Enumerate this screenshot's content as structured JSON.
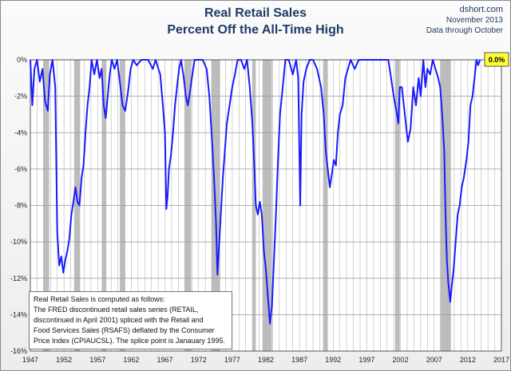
{
  "header": {
    "title_line1": "Real Retail Sales",
    "title_line2": "Percent Off the All-Time High",
    "source": "dshort.com",
    "date": "November 2013",
    "data_through": "Data through October"
  },
  "note": {
    "lines": [
      "Real Retail Sales is computed as follows:",
      "The FRED discontinued retail sales series (RETAIL,",
      "discontinued in April 2001) spliced with the Retail and",
      "Food Services Sales (RSAFS) deflated by the Consumer",
      "Price Index (CPIAUCSL). The splice point is Janauary 1995."
    ]
  },
  "chart_data": {
    "type": "line",
    "title": "Real Retail Sales Percent Off the All-Time High",
    "xlabel": "",
    "ylabel": "",
    "xlim": [
      1947,
      2017
    ],
    "ylim": [
      -16,
      0
    ],
    "x_ticks": [
      "1947",
      "1952",
      "1957",
      "1962",
      "1967",
      "1972",
      "1977",
      "1982",
      "1987",
      "1992",
      "1997",
      "2002",
      "2007",
      "2012",
      "2017"
    ],
    "y_ticks": [
      "0%",
      "-2%",
      "-4%",
      "-6%",
      "-8%",
      "-10%",
      "-12%",
      "-14%",
      "-16%"
    ],
    "y_tick_values": [
      0,
      -2,
      -4,
      -6,
      -8,
      -10,
      -12,
      -14,
      -16
    ],
    "grid": true,
    "line_color": "#1a1aff",
    "recession_color": "#bdbdbd",
    "recessions": [
      [
        1948.9,
        1949.8
      ],
      [
        1953.5,
        1954.4
      ],
      [
        1957.6,
        1958.3
      ],
      [
        1960.3,
        1961.1
      ],
      [
        1969.9,
        1970.9
      ],
      [
        1973.9,
        1975.2
      ],
      [
        1980.0,
        1980.5
      ],
      [
        1981.5,
        1982.9
      ],
      [
        1990.5,
        1991.2
      ],
      [
        2001.2,
        2001.9
      ],
      [
        2007.9,
        2009.5
      ]
    ],
    "latest_value": "0.0%",
    "series": [
      {
        "points": [
          [
            1947.0,
            0
          ],
          [
            1947.3,
            -2.5
          ],
          [
            1947.6,
            -0.5
          ],
          [
            1948.0,
            0
          ],
          [
            1948.4,
            -1.2
          ],
          [
            1948.8,
            -0.5
          ],
          [
            1949.2,
            -2.3
          ],
          [
            1949.6,
            -2.8
          ],
          [
            1949.9,
            -0.8
          ],
          [
            1950.3,
            0
          ],
          [
            1950.7,
            -1.5
          ],
          [
            1951.0,
            -9.5
          ],
          [
            1951.3,
            -11.3
          ],
          [
            1951.6,
            -10.8
          ],
          [
            1951.9,
            -11.7
          ],
          [
            1952.2,
            -11.0
          ],
          [
            1952.5,
            -10.5
          ],
          [
            1952.8,
            -9.8
          ],
          [
            1953.1,
            -8.5
          ],
          [
            1953.4,
            -7.8
          ],
          [
            1953.7,
            -7.0
          ],
          [
            1954.0,
            -7.8
          ],
          [
            1954.3,
            -8.0
          ],
          [
            1954.6,
            -6.5
          ],
          [
            1954.9,
            -5.8
          ],
          [
            1955.2,
            -4.0
          ],
          [
            1955.5,
            -2.5
          ],
          [
            1955.8,
            -1.5
          ],
          [
            1956.1,
            0
          ],
          [
            1956.5,
            -0.8
          ],
          [
            1956.9,
            0
          ],
          [
            1957.3,
            -1.0
          ],
          [
            1957.6,
            -0.5
          ],
          [
            1957.9,
            -2.5
          ],
          [
            1958.2,
            -3.2
          ],
          [
            1958.5,
            -2.0
          ],
          [
            1958.8,
            -0.8
          ],
          [
            1959.1,
            0
          ],
          [
            1959.5,
            -0.5
          ],
          [
            1959.9,
            0
          ],
          [
            1960.3,
            -1.2
          ],
          [
            1960.7,
            -2.5
          ],
          [
            1961.1,
            -2.8
          ],
          [
            1961.5,
            -1.8
          ],
          [
            1961.9,
            -0.5
          ],
          [
            1962.3,
            0
          ],
          [
            1962.8,
            -0.3
          ],
          [
            1963.5,
            0
          ],
          [
            1964.5,
            0
          ],
          [
            1965.2,
            -0.5
          ],
          [
            1965.6,
            0
          ],
          [
            1966.3,
            -0.8
          ],
          [
            1966.7,
            -2.5
          ],
          [
            1967.0,
            -4.0
          ],
          [
            1967.2,
            -8.2
          ],
          [
            1967.4,
            -7.5
          ],
          [
            1967.6,
            -6.0
          ],
          [
            1967.9,
            -5.2
          ],
          [
            1968.2,
            -4.0
          ],
          [
            1968.5,
            -2.5
          ],
          [
            1968.8,
            -1.5
          ],
          [
            1969.1,
            -0.5
          ],
          [
            1969.4,
            0
          ],
          [
            1969.8,
            -1.0
          ],
          [
            1970.1,
            -2.0
          ],
          [
            1970.4,
            -2.5
          ],
          [
            1970.7,
            -1.8
          ],
          [
            1971.0,
            -1.0
          ],
          [
            1971.4,
            0
          ],
          [
            1972.0,
            0
          ],
          [
            1972.6,
            0
          ],
          [
            1973.2,
            -0.5
          ],
          [
            1973.6,
            -2.0
          ],
          [
            1974.0,
            -4.5
          ],
          [
            1974.3,
            -6.5
          ],
          [
            1974.6,
            -9.0
          ],
          [
            1974.8,
            -11.8
          ],
          [
            1975.0,
            -10.5
          ],
          [
            1975.3,
            -8.5
          ],
          [
            1975.6,
            -6.5
          ],
          [
            1975.9,
            -5.0
          ],
          [
            1976.2,
            -3.5
          ],
          [
            1976.6,
            -2.5
          ],
          [
            1977.0,
            -1.5
          ],
          [
            1977.4,
            -0.8
          ],
          [
            1977.8,
            0
          ],
          [
            1978.3,
            0
          ],
          [
            1978.8,
            -0.5
          ],
          [
            1979.2,
            0
          ],
          [
            1979.6,
            -1.5
          ],
          [
            1980.0,
            -3.5
          ],
          [
            1980.3,
            -6.0
          ],
          [
            1980.5,
            -8.0
          ],
          [
            1980.8,
            -8.5
          ],
          [
            1981.1,
            -7.8
          ],
          [
            1981.4,
            -8.5
          ],
          [
            1981.7,
            -10.5
          ],
          [
            1982.0,
            -11.5
          ],
          [
            1982.3,
            -13.0
          ],
          [
            1982.6,
            -14.5
          ],
          [
            1982.9,
            -13.5
          ],
          [
            1983.2,
            -11.0
          ],
          [
            1983.5,
            -8.5
          ],
          [
            1983.8,
            -5.5
          ],
          [
            1984.1,
            -3.0
          ],
          [
            1984.5,
            -1.5
          ],
          [
            1984.9,
            0
          ],
          [
            1985.4,
            0
          ],
          [
            1986.0,
            -0.8
          ],
          [
            1986.5,
            0
          ],
          [
            1986.8,
            -1.0
          ],
          [
            1987.1,
            -8.0
          ],
          [
            1987.3,
            -3.0
          ],
          [
            1987.6,
            -1.2
          ],
          [
            1988.0,
            -0.5
          ],
          [
            1988.5,
            0
          ],
          [
            1989.0,
            0
          ],
          [
            1989.6,
            -0.5
          ],
          [
            1990.2,
            -1.5
          ],
          [
            1990.6,
            -3.0
          ],
          [
            1990.9,
            -5.0
          ],
          [
            1991.2,
            -6.0
          ],
          [
            1991.5,
            -7.0
          ],
          [
            1991.8,
            -6.3
          ],
          [
            1992.1,
            -5.5
          ],
          [
            1992.4,
            -5.8
          ],
          [
            1992.7,
            -4.0
          ],
          [
            1993.0,
            -3.0
          ],
          [
            1993.4,
            -2.5
          ],
          [
            1993.8,
            -1.0
          ],
          [
            1994.2,
            -0.5
          ],
          [
            1994.6,
            0
          ],
          [
            1995.2,
            -0.5
          ],
          [
            1995.8,
            0
          ],
          [
            1996.5,
            0
          ],
          [
            1997.2,
            0
          ],
          [
            1998.0,
            0
          ],
          [
            1998.8,
            0
          ],
          [
            1999.5,
            0
          ],
          [
            2000.2,
            0
          ],
          [
            2000.6,
            -1.0
          ],
          [
            2001.0,
            -2.0
          ],
          [
            2001.4,
            -2.8
          ],
          [
            2001.7,
            -3.5
          ],
          [
            2001.9,
            -1.5
          ],
          [
            2002.2,
            -1.5
          ],
          [
            2002.5,
            -2.5
          ],
          [
            2002.8,
            -3.5
          ],
          [
            2003.1,
            -4.5
          ],
          [
            2003.5,
            -3.8
          ],
          [
            2003.9,
            -1.5
          ],
          [
            2004.3,
            -2.5
          ],
          [
            2004.7,
            -1.0
          ],
          [
            2005.0,
            -2.0
          ],
          [
            2005.4,
            0
          ],
          [
            2005.7,
            -1.5
          ],
          [
            2006.0,
            -0.5
          ],
          [
            2006.4,
            -0.8
          ],
          [
            2006.8,
            0
          ],
          [
            2007.2,
            -0.5
          ],
          [
            2007.6,
            -1.0
          ],
          [
            2007.9,
            -1.5
          ],
          [
            2008.2,
            -3.0
          ],
          [
            2008.5,
            -5.0
          ],
          [
            2008.7,
            -8.5
          ],
          [
            2008.9,
            -11.0
          ],
          [
            2009.1,
            -12.2
          ],
          [
            2009.4,
            -13.3
          ],
          [
            2009.6,
            -12.5
          ],
          [
            2009.9,
            -11.5
          ],
          [
            2010.2,
            -10.0
          ],
          [
            2010.5,
            -8.5
          ],
          [
            2010.8,
            -8.0
          ],
          [
            2011.1,
            -7.0
          ],
          [
            2011.4,
            -6.5
          ],
          [
            2011.8,
            -5.5
          ],
          [
            2012.1,
            -4.5
          ],
          [
            2012.4,
            -2.5
          ],
          [
            2012.7,
            -2.0
          ],
          [
            2013.0,
            -1.0
          ],
          [
            2013.3,
            0
          ],
          [
            2013.55,
            -0.3
          ],
          [
            2013.8,
            0
          ]
        ]
      }
    ]
  }
}
